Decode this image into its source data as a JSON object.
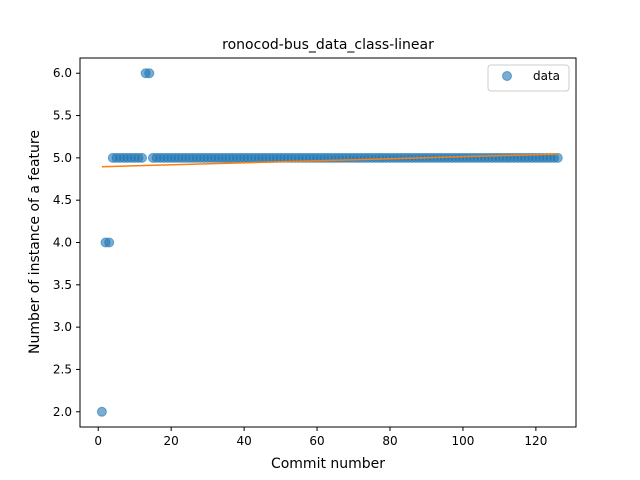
{
  "chart_data": {
    "type": "scatter",
    "title": "ronocod-bus_data_class-linear",
    "xlabel": "Commit number",
    "ylabel": "Number of instance of a feature",
    "xlim": [
      -5,
      131
    ],
    "ylim": [
      1.82,
      6.18
    ],
    "xticks": [
      0,
      20,
      40,
      60,
      80,
      100,
      120
    ],
    "yticks": [
      2.0,
      2.5,
      3.0,
      3.5,
      4.0,
      4.5,
      5.0,
      5.5,
      6.0
    ],
    "xtick_labels": [
      "0",
      "20",
      "40",
      "60",
      "80",
      "100",
      "120"
    ],
    "ytick_labels": [
      "2.0",
      "2.5",
      "3.0",
      "3.5",
      "4.0",
      "4.5",
      "5.0",
      "5.5",
      "6.0"
    ],
    "grid": false,
    "legend": {
      "position": "top-right",
      "entries": [
        "data"
      ]
    },
    "series": [
      {
        "name": "data",
        "kind": "scatter",
        "color": "#1f77b4",
        "points": [
          [
            1,
            2.0
          ],
          [
            2,
            4.0
          ],
          [
            3,
            4.0
          ],
          [
            4,
            5.0
          ],
          [
            5,
            5.0
          ],
          [
            6,
            5.0
          ],
          [
            7,
            5.0
          ],
          [
            8,
            5.0
          ],
          [
            9,
            5.0
          ],
          [
            10,
            5.0
          ],
          [
            11,
            5.0
          ],
          [
            12,
            5.0
          ],
          [
            13,
            6.0
          ],
          [
            14,
            6.0
          ],
          [
            15,
            5.0
          ],
          [
            16,
            5.0
          ],
          [
            17,
            5.0
          ],
          [
            18,
            5.0
          ],
          [
            19,
            5.0
          ],
          [
            20,
            5.0
          ],
          [
            21,
            5.0
          ],
          [
            22,
            5.0
          ],
          [
            23,
            5.0
          ],
          [
            24,
            5.0
          ],
          [
            25,
            5.0
          ],
          [
            26,
            5.0
          ],
          [
            27,
            5.0
          ],
          [
            28,
            5.0
          ],
          [
            29,
            5.0
          ],
          [
            30,
            5.0
          ],
          [
            31,
            5.0
          ],
          [
            32,
            5.0
          ],
          [
            33,
            5.0
          ],
          [
            34,
            5.0
          ],
          [
            35,
            5.0
          ],
          [
            36,
            5.0
          ],
          [
            37,
            5.0
          ],
          [
            38,
            5.0
          ],
          [
            39,
            5.0
          ],
          [
            40,
            5.0
          ],
          [
            41,
            5.0
          ],
          [
            42,
            5.0
          ],
          [
            43,
            5.0
          ],
          [
            44,
            5.0
          ],
          [
            45,
            5.0
          ],
          [
            46,
            5.0
          ],
          [
            47,
            5.0
          ],
          [
            48,
            5.0
          ],
          [
            49,
            5.0
          ],
          [
            50,
            5.0
          ],
          [
            51,
            5.0
          ],
          [
            52,
            5.0
          ],
          [
            53,
            5.0
          ],
          [
            54,
            5.0
          ],
          [
            55,
            5.0
          ],
          [
            56,
            5.0
          ],
          [
            57,
            5.0
          ],
          [
            58,
            5.0
          ],
          [
            59,
            5.0
          ],
          [
            60,
            5.0
          ],
          [
            61,
            5.0
          ],
          [
            62,
            5.0
          ],
          [
            63,
            5.0
          ],
          [
            64,
            5.0
          ],
          [
            65,
            5.0
          ],
          [
            66,
            5.0
          ],
          [
            67,
            5.0
          ],
          [
            68,
            5.0
          ],
          [
            69,
            5.0
          ],
          [
            70,
            5.0
          ],
          [
            71,
            5.0
          ],
          [
            72,
            5.0
          ],
          [
            73,
            5.0
          ],
          [
            74,
            5.0
          ],
          [
            75,
            5.0
          ],
          [
            76,
            5.0
          ],
          [
            77,
            5.0
          ],
          [
            78,
            5.0
          ],
          [
            79,
            5.0
          ],
          [
            80,
            5.0
          ],
          [
            81,
            5.0
          ],
          [
            82,
            5.0
          ],
          [
            83,
            5.0
          ],
          [
            84,
            5.0
          ],
          [
            85,
            5.0
          ],
          [
            86,
            5.0
          ],
          [
            87,
            5.0
          ],
          [
            88,
            5.0
          ],
          [
            89,
            5.0
          ],
          [
            90,
            5.0
          ],
          [
            91,
            5.0
          ],
          [
            92,
            5.0
          ],
          [
            93,
            5.0
          ],
          [
            94,
            5.0
          ],
          [
            95,
            5.0
          ],
          [
            96,
            5.0
          ],
          [
            97,
            5.0
          ],
          [
            98,
            5.0
          ],
          [
            99,
            5.0
          ],
          [
            100,
            5.0
          ],
          [
            101,
            5.0
          ],
          [
            102,
            5.0
          ],
          [
            103,
            5.0
          ],
          [
            104,
            5.0
          ],
          [
            105,
            5.0
          ],
          [
            106,
            5.0
          ],
          [
            107,
            5.0
          ],
          [
            108,
            5.0
          ],
          [
            109,
            5.0
          ],
          [
            110,
            5.0
          ],
          [
            111,
            5.0
          ],
          [
            112,
            5.0
          ],
          [
            113,
            5.0
          ],
          [
            114,
            5.0
          ],
          [
            115,
            5.0
          ],
          [
            116,
            5.0
          ],
          [
            117,
            5.0
          ],
          [
            118,
            5.0
          ],
          [
            119,
            5.0
          ],
          [
            120,
            5.0
          ],
          [
            121,
            5.0
          ],
          [
            122,
            5.0
          ],
          [
            123,
            5.0
          ],
          [
            124,
            5.0
          ],
          [
            125,
            5.0
          ],
          [
            126,
            5.0
          ]
        ]
      },
      {
        "kind": "line",
        "color": "#ff7f0e",
        "points": [
          [
            1,
            4.895
          ],
          [
            126,
            5.045
          ]
        ]
      }
    ]
  }
}
